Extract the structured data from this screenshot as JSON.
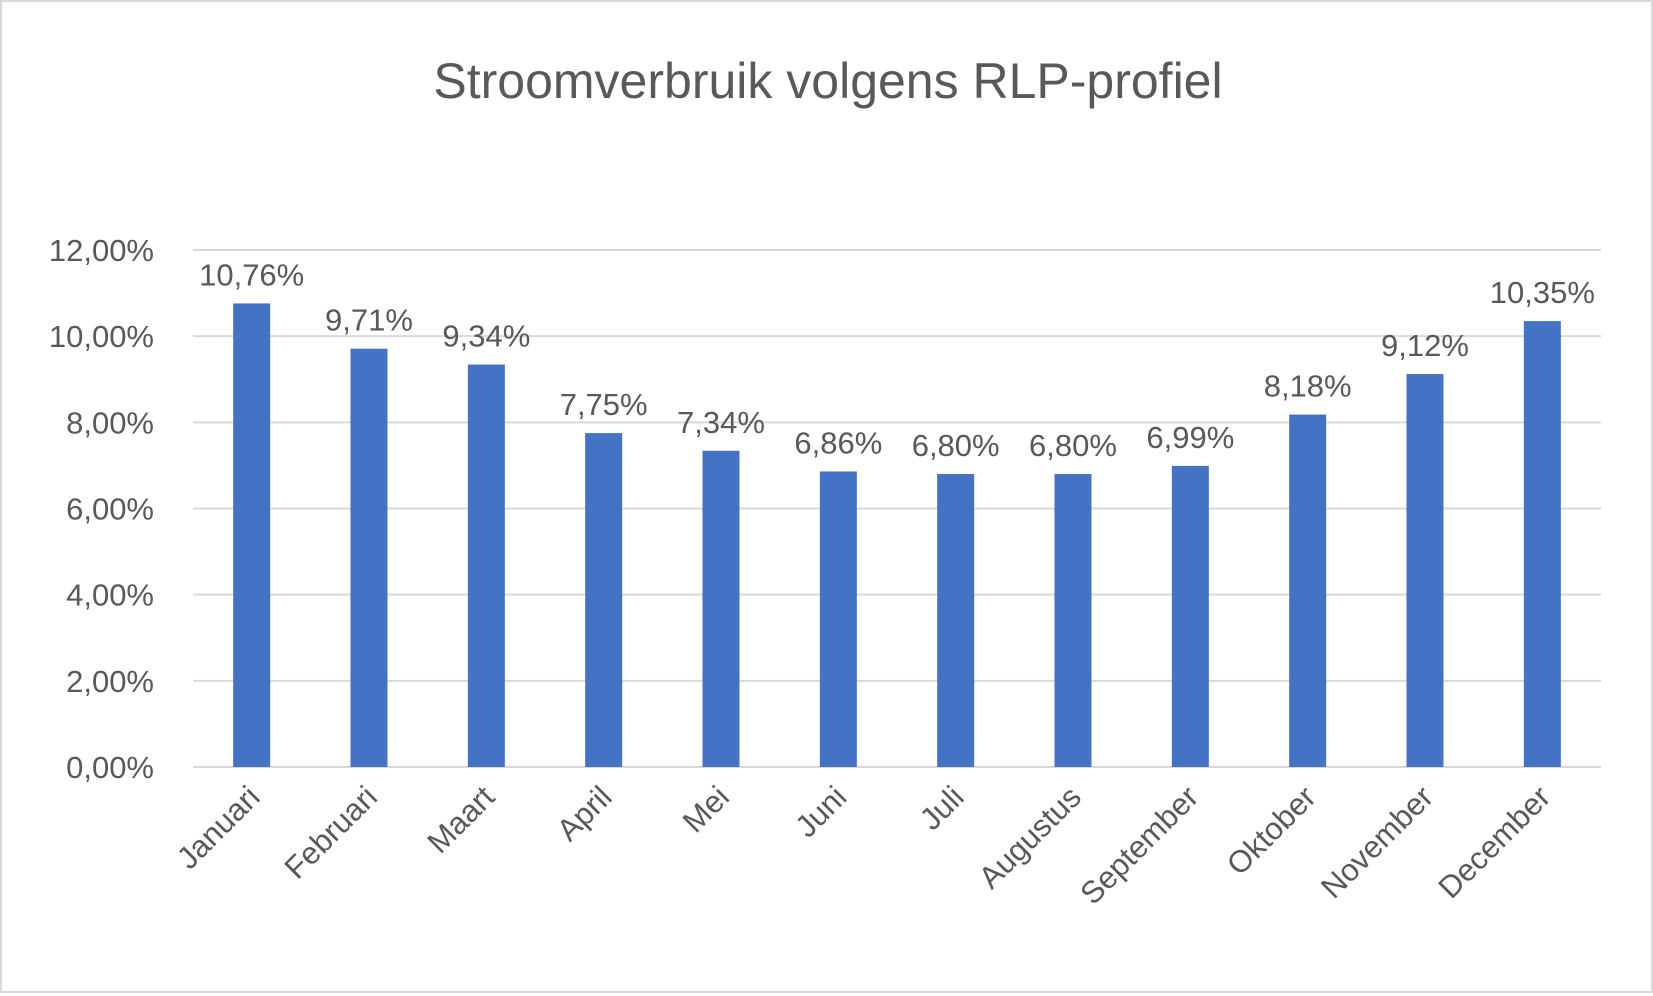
{
  "chart_data": {
    "type": "bar",
    "title": "Stroomverbruik volgens RLP-profiel",
    "xlabel": "",
    "ylabel": "",
    "categories": [
      "Januari",
      "Februari",
      "Maart",
      "April",
      "Mei",
      "Juni",
      "Juli",
      "Augustus",
      "September",
      "Oktober",
      "November",
      "December"
    ],
    "values": [
      10.76,
      9.71,
      9.34,
      7.75,
      7.34,
      6.86,
      6.8,
      6.8,
      6.99,
      8.18,
      9.12,
      10.35
    ],
    "data_labels": [
      "10,76%",
      "9,71%",
      "9,34%",
      "7,75%",
      "7,34%",
      "6,86%",
      "6,80%",
      "6,80%",
      "6,99%",
      "8,18%",
      "9,12%",
      "10,35%"
    ],
    "ylim": [
      0,
      12
    ],
    "yticks": [
      0,
      2,
      4,
      6,
      8,
      10,
      12
    ],
    "ytick_labels": [
      "0,00%",
      "2,00%",
      "4,00%",
      "6,00%",
      "8,00%",
      "10,00%",
      "12,00%"
    ],
    "grid": true,
    "legend": "none",
    "colors": {
      "bar": "#4472c4",
      "grid": "#d9d9d9",
      "text": "#595959"
    }
  }
}
